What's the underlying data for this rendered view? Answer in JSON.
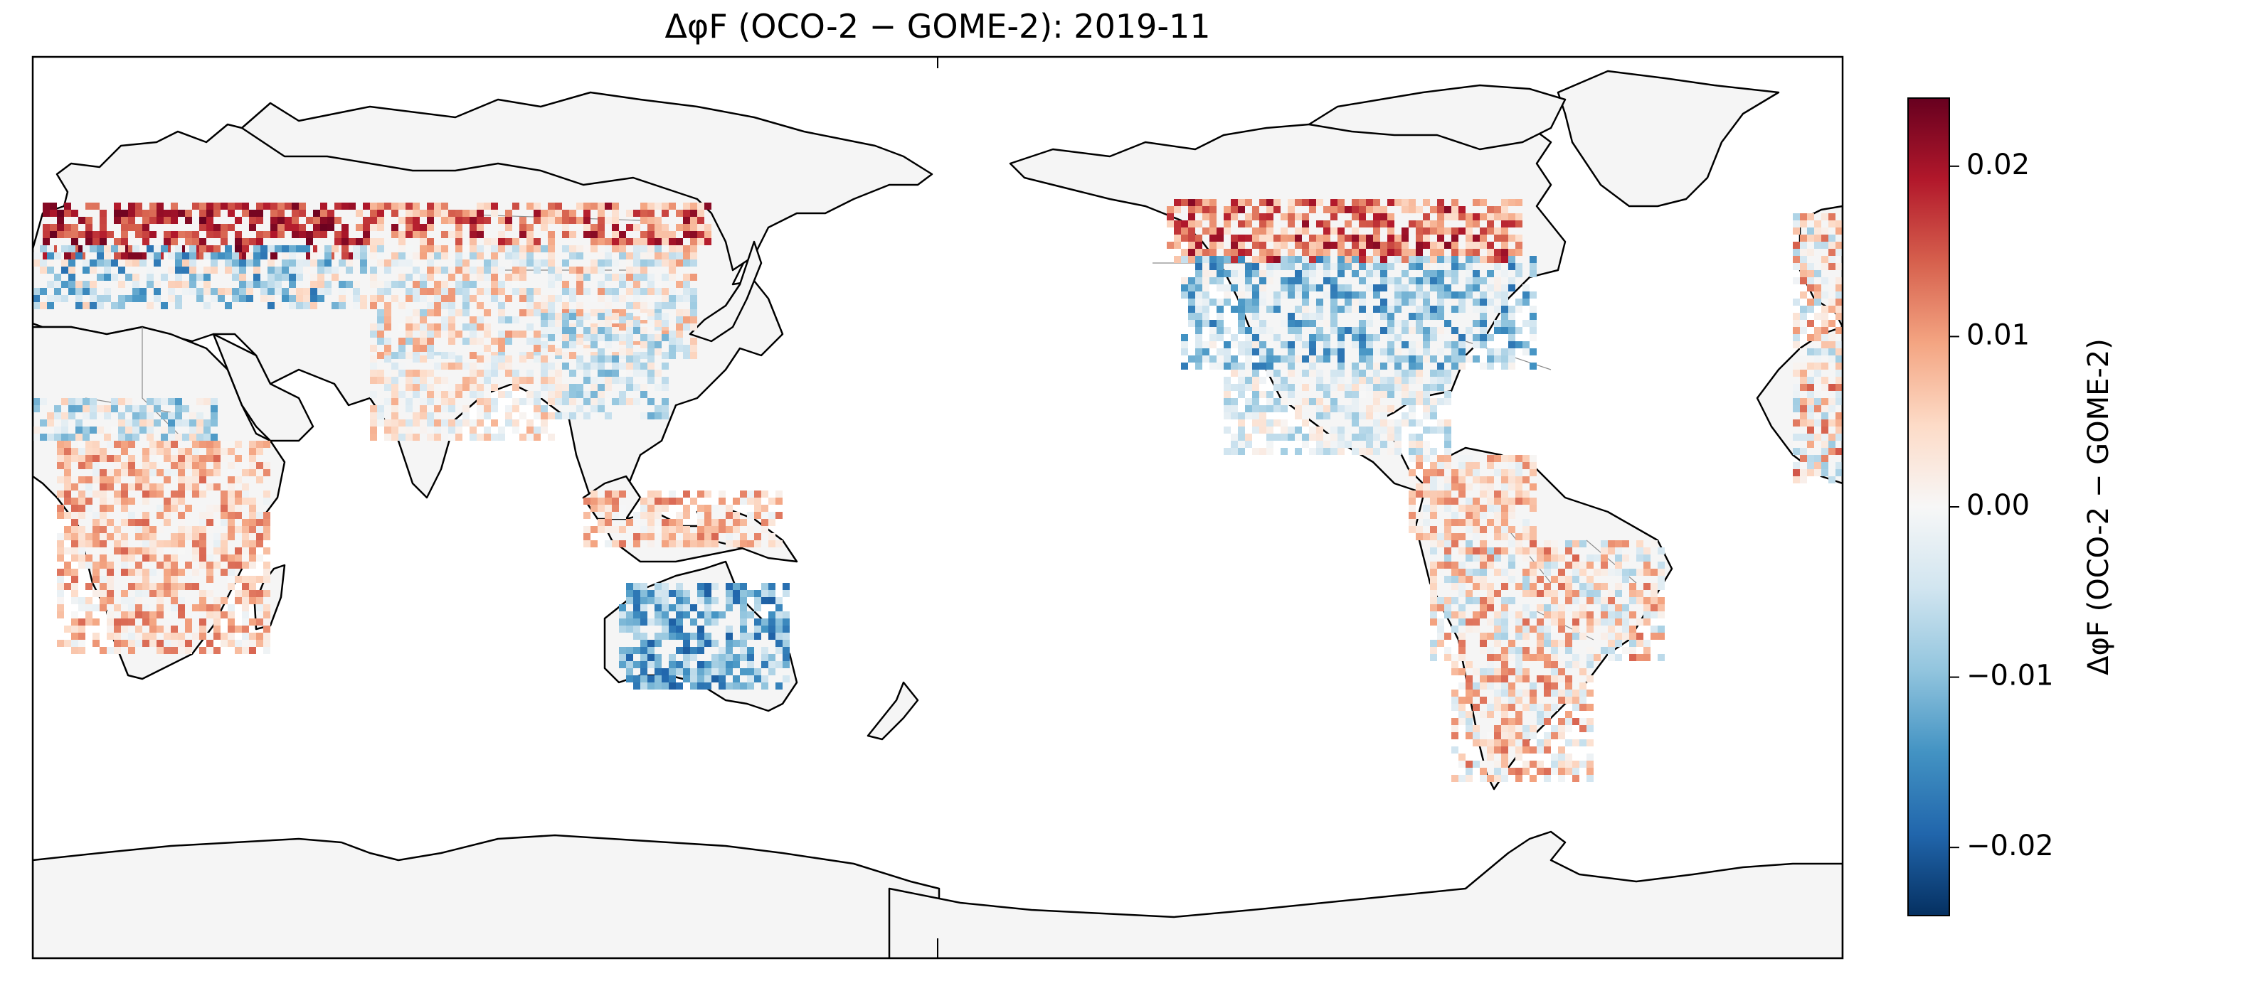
{
  "title": "ΔφF (OCO-2 − GOME-2): 2019-11",
  "colorbar": {
    "label": "ΔφF (OCO-2 − GOME-2)",
    "min": -0.024,
    "max": 0.024,
    "ticks": [
      {
        "value": 0.02,
        "label": "0.02"
      },
      {
        "value": 0.01,
        "label": "0.01"
      },
      {
        "value": 0.0,
        "label": "0.00"
      },
      {
        "value": -0.01,
        "label": "−0.01"
      },
      {
        "value": -0.02,
        "label": "−0.02"
      }
    ],
    "colormap": "RdBu_r",
    "stops": [
      "#053061",
      "#2166ac",
      "#4393c3",
      "#92c5de",
      "#d1e5f0",
      "#f7f7f7",
      "#fddbc7",
      "#f4a582",
      "#d6604d",
      "#b2182b",
      "#67001f"
    ]
  },
  "map": {
    "projection": "PlateCarree",
    "central_longitude": 150,
    "land_color": "#f5f5f5",
    "ocean_color": "#ffffff"
  }
}
